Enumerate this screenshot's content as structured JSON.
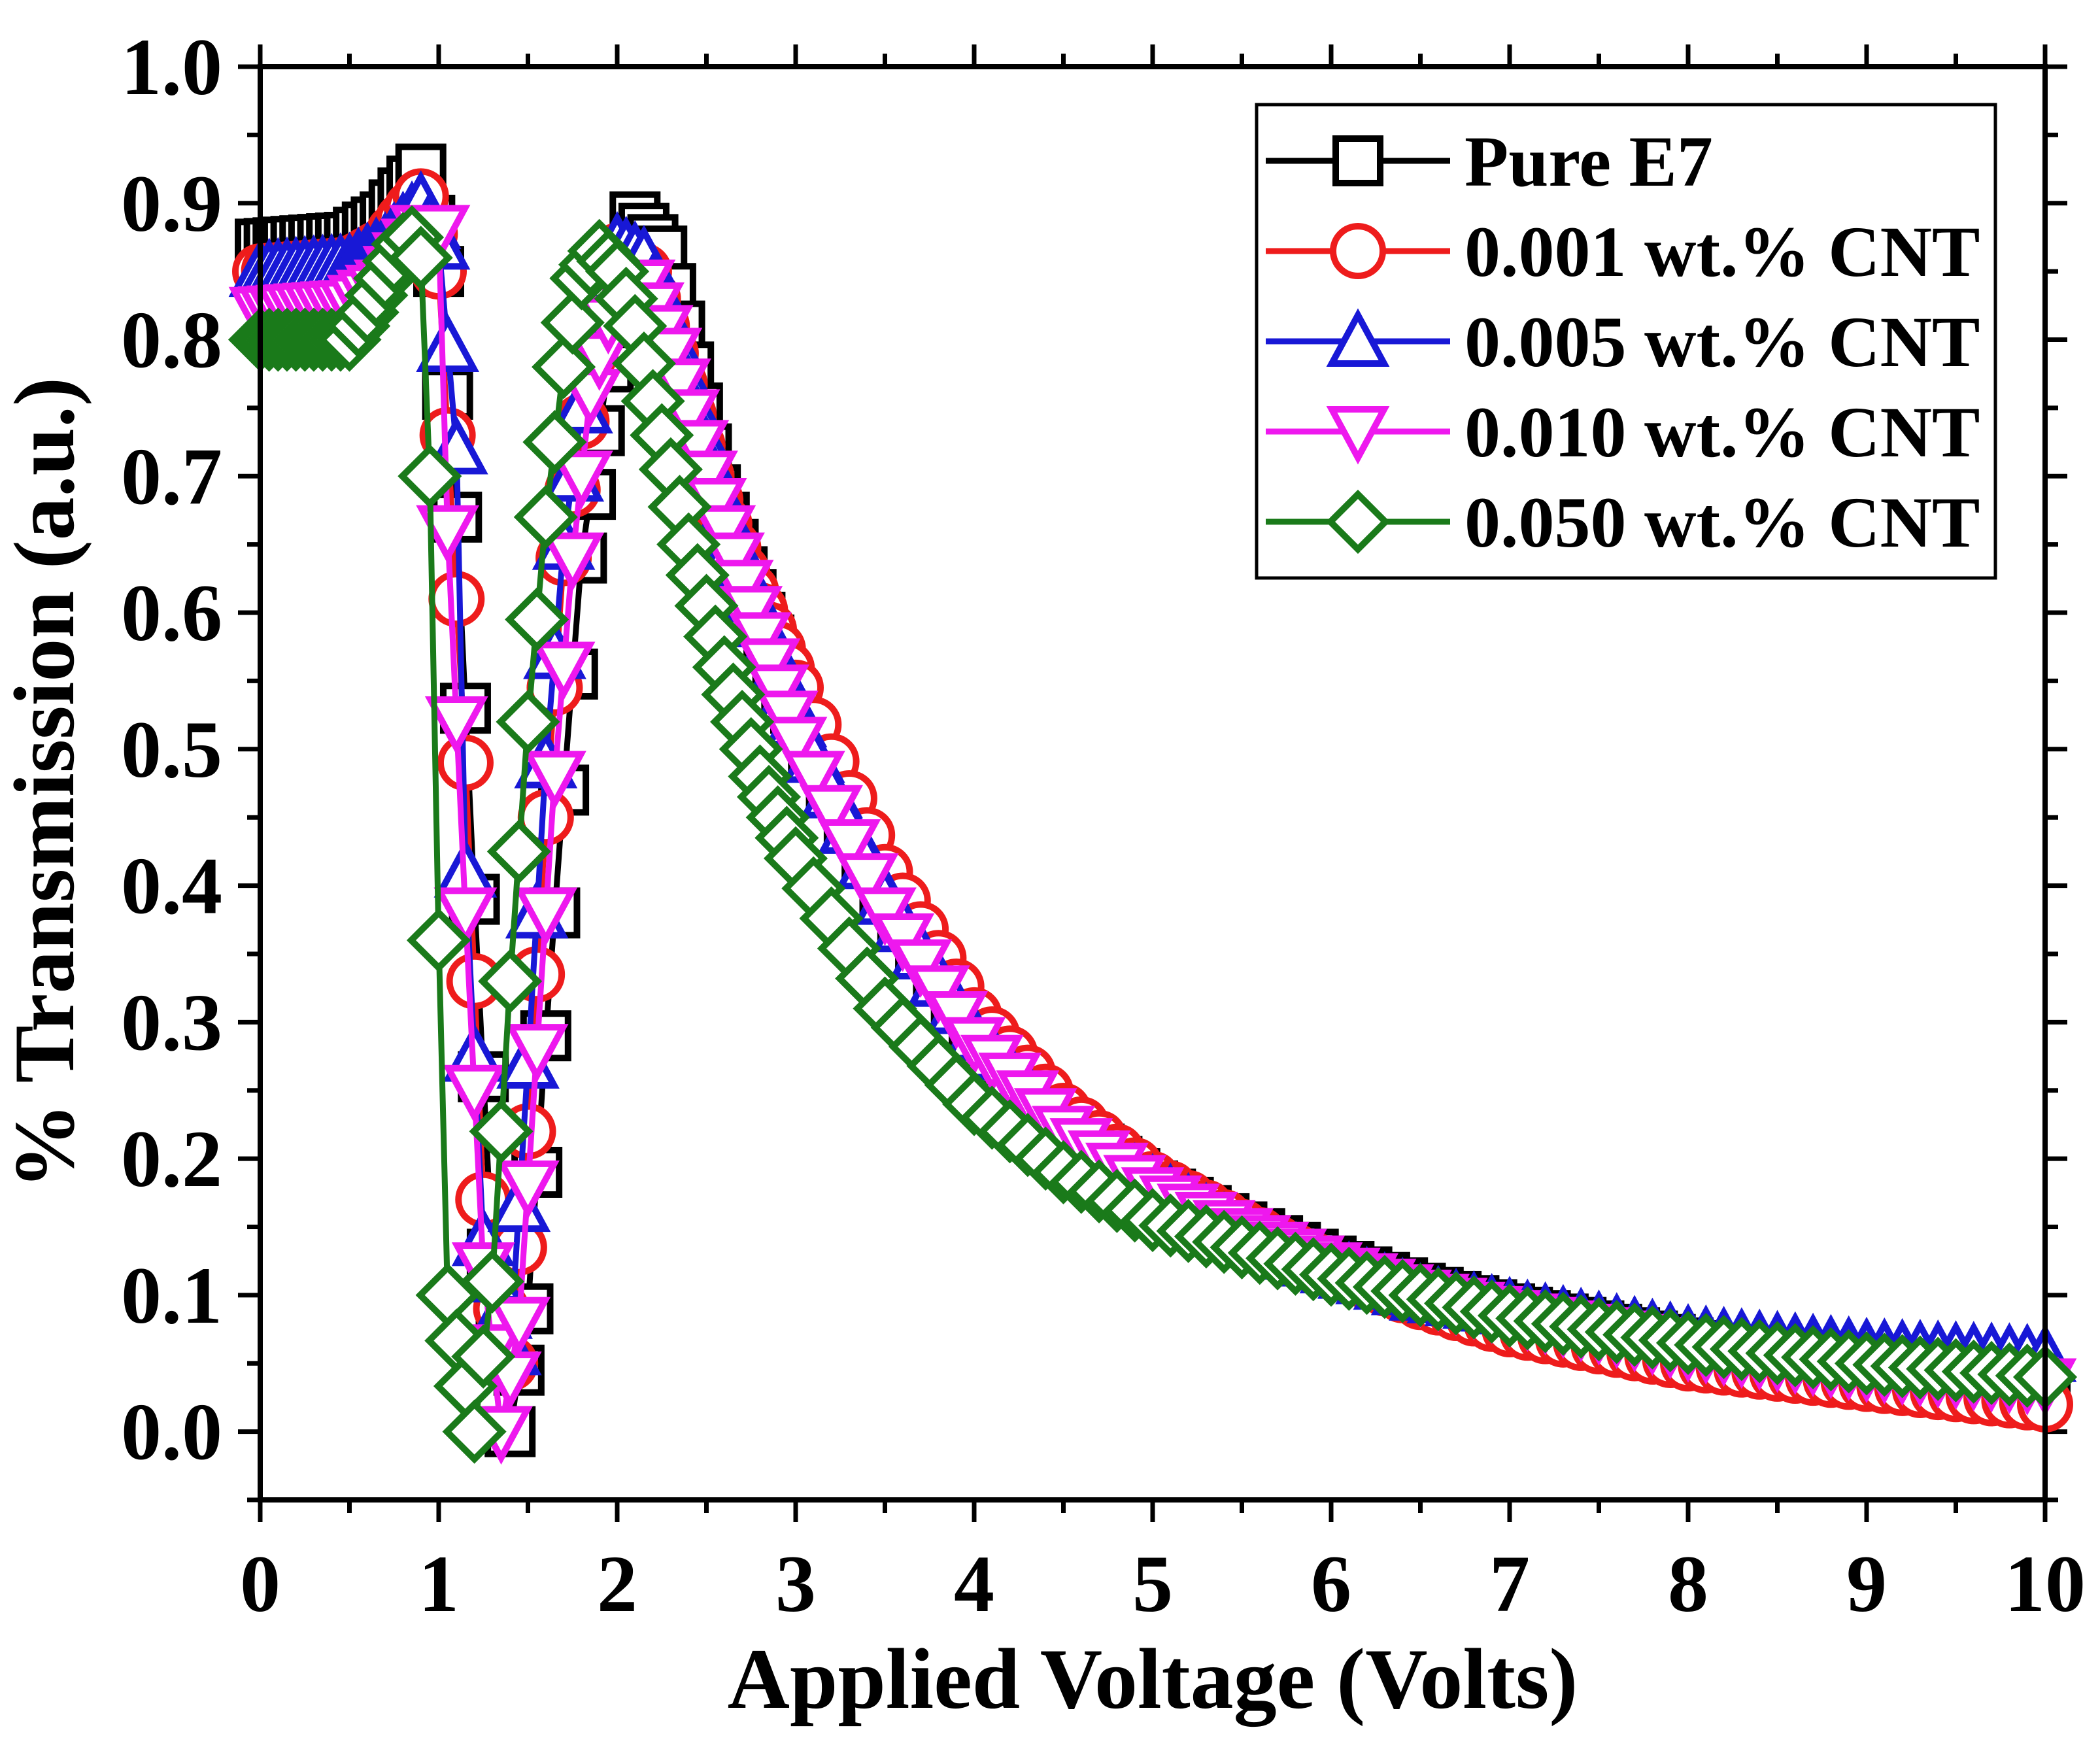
{
  "chart_data": {
    "type": "line",
    "title": "",
    "xlabel": "Applied Voltage (Volts)",
    "ylabel": "% Transmission (a.u.)",
    "xlim": [
      0,
      10
    ],
    "ylim": [
      -0.05,
      1.0
    ],
    "xticks": [
      "0",
      "1",
      "2",
      "3",
      "4",
      "5",
      "6",
      "7",
      "8",
      "9",
      "10"
    ],
    "yticks": [
      "0.0",
      "0.1",
      "0.2",
      "0.3",
      "0.4",
      "0.5",
      "0.6",
      "0.7",
      "0.8",
      "0.9",
      "1.0"
    ],
    "legend_position": "top-right",
    "series": [
      {
        "name": "Pure E7",
        "color": "#000000",
        "marker": "square",
        "anchors": [
          [
            0,
            0.87
          ],
          [
            0.5,
            0.875
          ],
          [
            0.7,
            0.89
          ],
          [
            0.9,
            0.925
          ],
          [
            1.0,
            0.85
          ],
          [
            1.1,
            0.67
          ],
          [
            1.2,
            0.39
          ],
          [
            1.3,
            0.13
          ],
          [
            1.4,
            0.0
          ],
          [
            1.5,
            0.09
          ],
          [
            1.6,
            0.29
          ],
          [
            1.7,
            0.47
          ],
          [
            1.8,
            0.64
          ],
          [
            1.95,
            0.78
          ],
          [
            2.1,
            0.89
          ],
          [
            2.25,
            0.865
          ],
          [
            2.35,
            0.81
          ],
          [
            2.45,
            0.75
          ],
          [
            2.55,
            0.69
          ],
          [
            2.7,
            0.63
          ],
          [
            3.0,
            0.53
          ],
          [
            3.5,
            0.39
          ],
          [
            4.0,
            0.295
          ],
          [
            4.5,
            0.225
          ],
          [
            5.0,
            0.18
          ],
          [
            5.5,
            0.15
          ],
          [
            6.0,
            0.125
          ],
          [
            6.5,
            0.105
          ],
          [
            7.0,
            0.09
          ],
          [
            8.0,
            0.065
          ],
          [
            9.0,
            0.045
          ],
          [
            10.0,
            0.03
          ]
        ]
      },
      {
        "name": "0.001 wt.% CNT",
        "color": "#ee1c1c",
        "marker": "circle",
        "anchors": [
          [
            0,
            0.85
          ],
          [
            0.5,
            0.855
          ],
          [
            0.7,
            0.87
          ],
          [
            0.9,
            0.905
          ],
          [
            1.0,
            0.85
          ],
          [
            1.05,
            0.73
          ],
          [
            1.15,
            0.49
          ],
          [
            1.25,
            0.17
          ],
          [
            1.4,
            0.05
          ],
          [
            1.5,
            0.22
          ],
          [
            1.6,
            0.45
          ],
          [
            1.7,
            0.64
          ],
          [
            1.85,
            0.79
          ],
          [
            2.0,
            0.865
          ],
          [
            2.15,
            0.85
          ],
          [
            2.3,
            0.79
          ],
          [
            2.5,
            0.7
          ],
          [
            2.7,
            0.63
          ],
          [
            3.0,
            0.545
          ],
          [
            3.5,
            0.41
          ],
          [
            4.0,
            0.305
          ],
          [
            4.5,
            0.235
          ],
          [
            5.0,
            0.185
          ],
          [
            5.5,
            0.15
          ],
          [
            6.0,
            0.12
          ],
          [
            6.5,
            0.095
          ],
          [
            7.0,
            0.075
          ],
          [
            8.0,
            0.05
          ],
          [
            9.0,
            0.035
          ],
          [
            10.0,
            0.02
          ]
        ]
      },
      {
        "name": "0.005 wt.% CNT",
        "color": "#1818d6",
        "marker": "triangle-up",
        "anchors": [
          [
            0,
            0.85
          ],
          [
            0.5,
            0.855
          ],
          [
            0.7,
            0.87
          ],
          [
            0.9,
            0.9
          ],
          [
            1.0,
            0.87
          ],
          [
            1.1,
            0.72
          ],
          [
            1.15,
            0.41
          ],
          [
            1.25,
            0.14
          ],
          [
            1.4,
            0.06
          ],
          [
            1.5,
            0.27
          ],
          [
            1.6,
            0.49
          ],
          [
            1.7,
            0.65
          ],
          [
            1.85,
            0.8
          ],
          [
            2.0,
            0.87
          ],
          [
            2.15,
            0.86
          ],
          [
            2.3,
            0.8
          ],
          [
            2.5,
            0.71
          ],
          [
            2.7,
            0.63
          ],
          [
            3.0,
            0.52
          ],
          [
            3.5,
            0.39
          ],
          [
            4.0,
            0.29
          ],
          [
            4.5,
            0.22
          ],
          [
            5.0,
            0.18
          ],
          [
            5.5,
            0.145
          ],
          [
            6.0,
            0.12
          ],
          [
            6.5,
            0.1
          ],
          [
            7.0,
            0.09
          ],
          [
            8.0,
            0.07
          ],
          [
            9.0,
            0.06
          ],
          [
            10.0,
            0.055
          ]
        ]
      },
      {
        "name": "0.010 wt.% CNT",
        "color": "#ee18ee",
        "marker": "triangle-down",
        "anchors": [
          [
            0,
            0.82
          ],
          [
            0.5,
            0.825
          ],
          [
            0.7,
            0.84
          ],
          [
            0.9,
            0.88
          ],
          [
            1.0,
            0.88
          ],
          [
            1.05,
            0.66
          ],
          [
            1.15,
            0.38
          ],
          [
            1.25,
            0.12
          ],
          [
            1.35,
            0.0
          ],
          [
            1.45,
            0.08
          ],
          [
            1.55,
            0.28
          ],
          [
            1.65,
            0.48
          ],
          [
            1.75,
            0.64
          ],
          [
            1.85,
            0.76
          ],
          [
            2.0,
            0.84
          ],
          [
            2.15,
            0.84
          ],
          [
            2.3,
            0.79
          ],
          [
            2.5,
            0.7
          ],
          [
            2.7,
            0.62
          ],
          [
            3.0,
            0.505
          ],
          [
            3.5,
            0.38
          ],
          [
            4.0,
            0.285
          ],
          [
            4.5,
            0.22
          ],
          [
            5.0,
            0.175
          ],
          [
            5.5,
            0.145
          ],
          [
            6.0,
            0.12
          ],
          [
            6.5,
            0.1
          ],
          [
            7.0,
            0.085
          ],
          [
            8.0,
            0.06
          ],
          [
            9.0,
            0.045
          ],
          [
            10.0,
            0.035
          ]
        ]
      },
      {
        "name": "0.050 wt.% CNT",
        "color": "#1a7a1a",
        "marker": "diamond",
        "anchors": [
          [
            0,
            0.8
          ],
          [
            0.25,
            0.8
          ],
          [
            0.5,
            0.8
          ],
          [
            0.6,
            0.82
          ],
          [
            0.7,
            0.845
          ],
          [
            0.8,
            0.87
          ],
          [
            0.85,
            0.875
          ],
          [
            0.9,
            0.86
          ],
          [
            0.95,
            0.7
          ],
          [
            1.0,
            0.36
          ],
          [
            1.05,
            0.1
          ],
          [
            1.2,
            0.0
          ],
          [
            1.3,
            0.11
          ],
          [
            1.4,
            0.33
          ],
          [
            1.5,
            0.52
          ],
          [
            1.6,
            0.67
          ],
          [
            1.7,
            0.78
          ],
          [
            1.8,
            0.845
          ],
          [
            1.9,
            0.865
          ],
          [
            2.0,
            0.85
          ],
          [
            2.1,
            0.81
          ],
          [
            2.2,
            0.755
          ],
          [
            2.3,
            0.705
          ],
          [
            2.4,
            0.65
          ],
          [
            2.5,
            0.605
          ],
          [
            2.6,
            0.56
          ],
          [
            2.7,
            0.52
          ],
          [
            2.8,
            0.48
          ],
          [
            3.0,
            0.42
          ],
          [
            3.5,
            0.31
          ],
          [
            4.0,
            0.24
          ],
          [
            4.5,
            0.19
          ],
          [
            5.0,
            0.155
          ],
          [
            5.5,
            0.135
          ],
          [
            6.0,
            0.115
          ],
          [
            6.5,
            0.1
          ],
          [
            7.0,
            0.085
          ],
          [
            8.0,
            0.065
          ],
          [
            9.0,
            0.05
          ],
          [
            10.0,
            0.04
          ]
        ]
      }
    ]
  }
}
